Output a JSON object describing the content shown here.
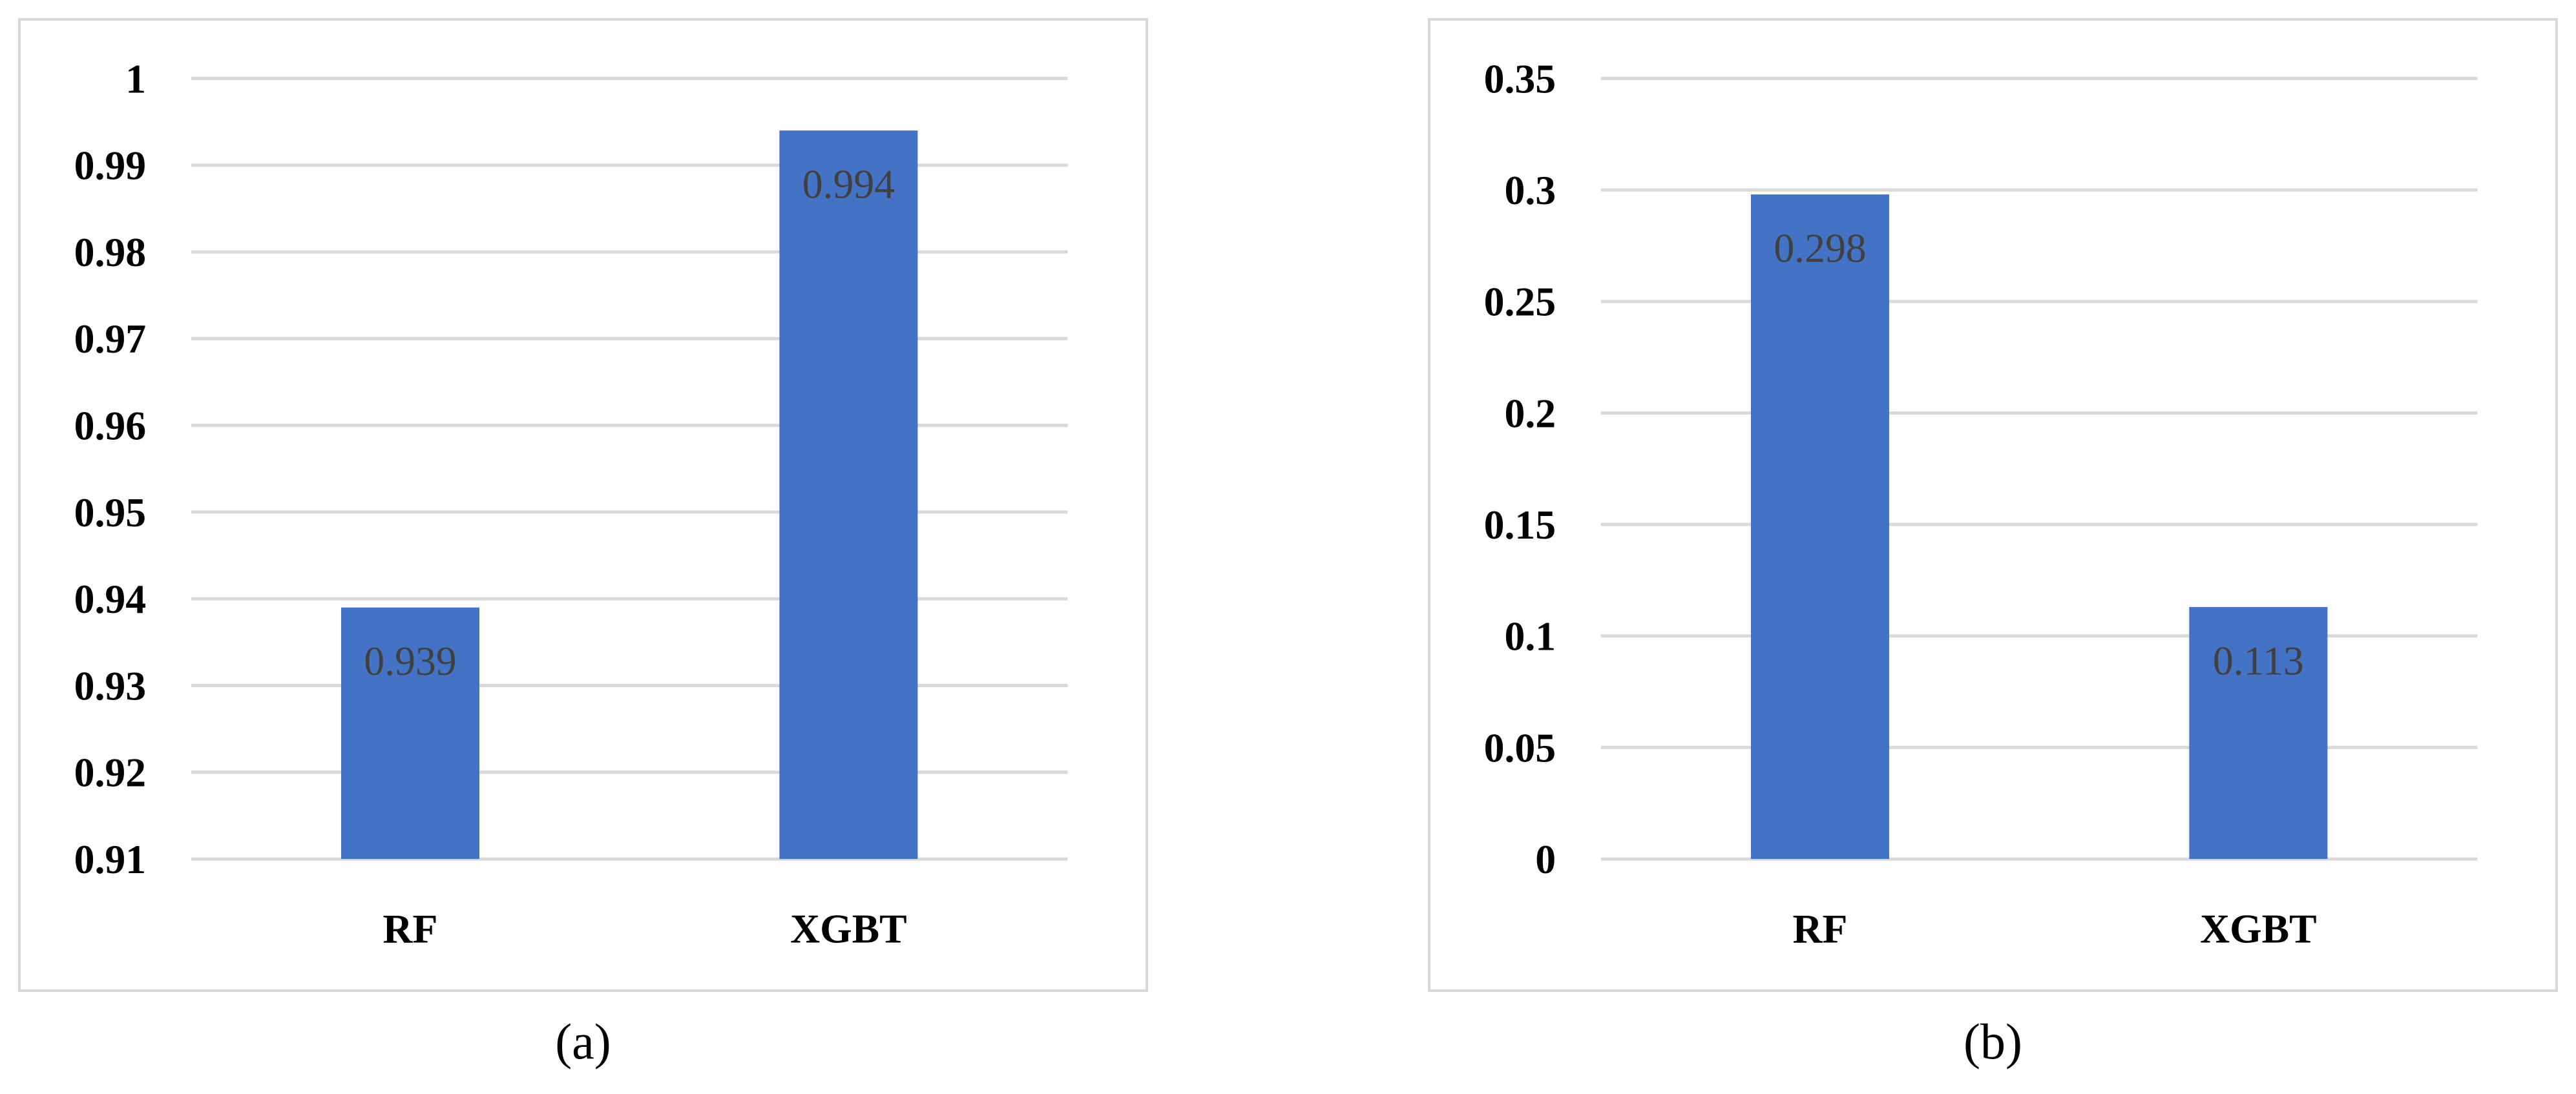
{
  "colors": {
    "bar": "#4472c4",
    "grid": "#d9d9d9",
    "text": "#000000",
    "data_label": "#404040"
  },
  "chart_data": [
    {
      "type": "bar",
      "caption": "(a)",
      "categories": [
        "RF",
        "XGBT"
      ],
      "values": [
        0.939,
        0.994
      ],
      "data_labels": [
        "0.939",
        "0.994"
      ],
      "ylim": [
        0.91,
        1.0
      ],
      "yticks": [
        "0.91",
        "0.92",
        "0.93",
        "0.94",
        "0.95",
        "0.96",
        "0.97",
        "0.98",
        "0.99",
        "1"
      ],
      "grid": true
    },
    {
      "type": "bar",
      "caption": "(b)",
      "categories": [
        "RF",
        "XGBT"
      ],
      "values": [
        0.298,
        0.113
      ],
      "data_labels": [
        "0.298",
        "0.113"
      ],
      "ylim": [
        0,
        0.35
      ],
      "yticks": [
        "0",
        "0.05",
        "0.1",
        "0.15",
        "0.2",
        "0.25",
        "0.3",
        "0.35"
      ],
      "grid": true
    }
  ]
}
